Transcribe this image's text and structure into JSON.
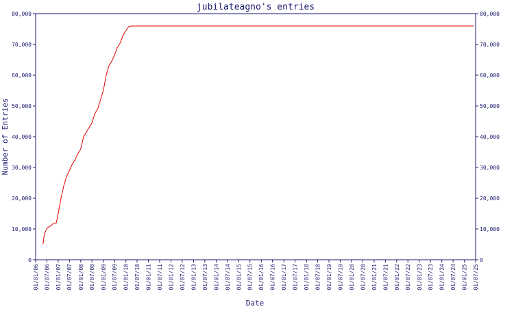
{
  "chart_data": {
    "type": "line",
    "title": "jubilateagno's entries",
    "xlabel": "Date",
    "ylabel": "Number of Entries",
    "ylim": [
      0,
      80000
    ],
    "yticks": [
      "0",
      "10,000",
      "20,000",
      "30,000",
      "40,000",
      "50,000",
      "60,000",
      "70,000",
      "80,000"
    ],
    "yticks_right": [
      "0",
      "10,000",
      "20,000",
      "30,000",
      "40,000",
      "50,000",
      "60,000",
      "70,000",
      "80,000"
    ],
    "xticks": [
      "01/01/06",
      "01/07/06",
      "01/01/07",
      "01/07/07",
      "01/01/08",
      "01/07/08",
      "01/01/09",
      "01/07/09",
      "01/01/10",
      "01/07/10",
      "01/01/11",
      "01/07/11",
      "01/01/12",
      "01/07/12",
      "01/01/13",
      "01/07/13",
      "01/01/14",
      "01/07/14",
      "01/01/15",
      "01/07/15",
      "01/01/16",
      "01/07/16",
      "01/01/17",
      "01/07/17",
      "01/01/18",
      "01/07/18",
      "01/01/19",
      "01/07/19",
      "01/01/20",
      "01/07/20",
      "01/01/21",
      "01/07/21",
      "01/01/22",
      "01/07/22",
      "01/01/23",
      "01/07/23",
      "01/01/24",
      "01/07/24",
      "01/01/25",
      "01/07/25"
    ],
    "grid": false,
    "line_color": "#e00000",
    "axis_color": "#1a1a6e",
    "series": [
      {
        "x": [
          "2006-05-01",
          "2006-05-20",
          "2006-06-15",
          "2006-07-15",
          "2006-09-01",
          "2006-10-15",
          "2006-12-01",
          "2007-01-01",
          "2007-02-15",
          "2007-04-01",
          "2007-05-15",
          "2007-07-01",
          "2007-08-15",
          "2007-10-01",
          "2007-11-15",
          "2008-01-01",
          "2008-02-15",
          "2008-04-01",
          "2008-05-15",
          "2008-07-01",
          "2008-08-15",
          "2008-10-01",
          "2008-11-15",
          "2009-01-01",
          "2009-02-15",
          "2009-04-01",
          "2009-05-15",
          "2009-07-01",
          "2009-08-15",
          "2009-10-01",
          "2009-11-15",
          "2010-01-01",
          "2010-02-15",
          "2010-04-01",
          "2010-05-15",
          "2010-07-01",
          "2012-01-01",
          "2015-01-01",
          "2018-01-01",
          "2021-01-01",
          "2024-01-01",
          "2025-06-01"
        ],
        "y": [
          5000,
          8000,
          9500,
          10500,
          11000,
          11800,
          12000,
          15000,
          20000,
          24000,
          27000,
          29000,
          31000,
          32500,
          34500,
          36000,
          40000,
          41500,
          43000,
          44500,
          47500,
          49000,
          52000,
          55000,
          60000,
          63000,
          64500,
          66500,
          69000,
          70500,
          73000,
          74500,
          75800,
          76000,
          76000,
          76000,
          76000,
          76000,
          76000,
          76000,
          76000,
          76000
        ]
      }
    ]
  }
}
